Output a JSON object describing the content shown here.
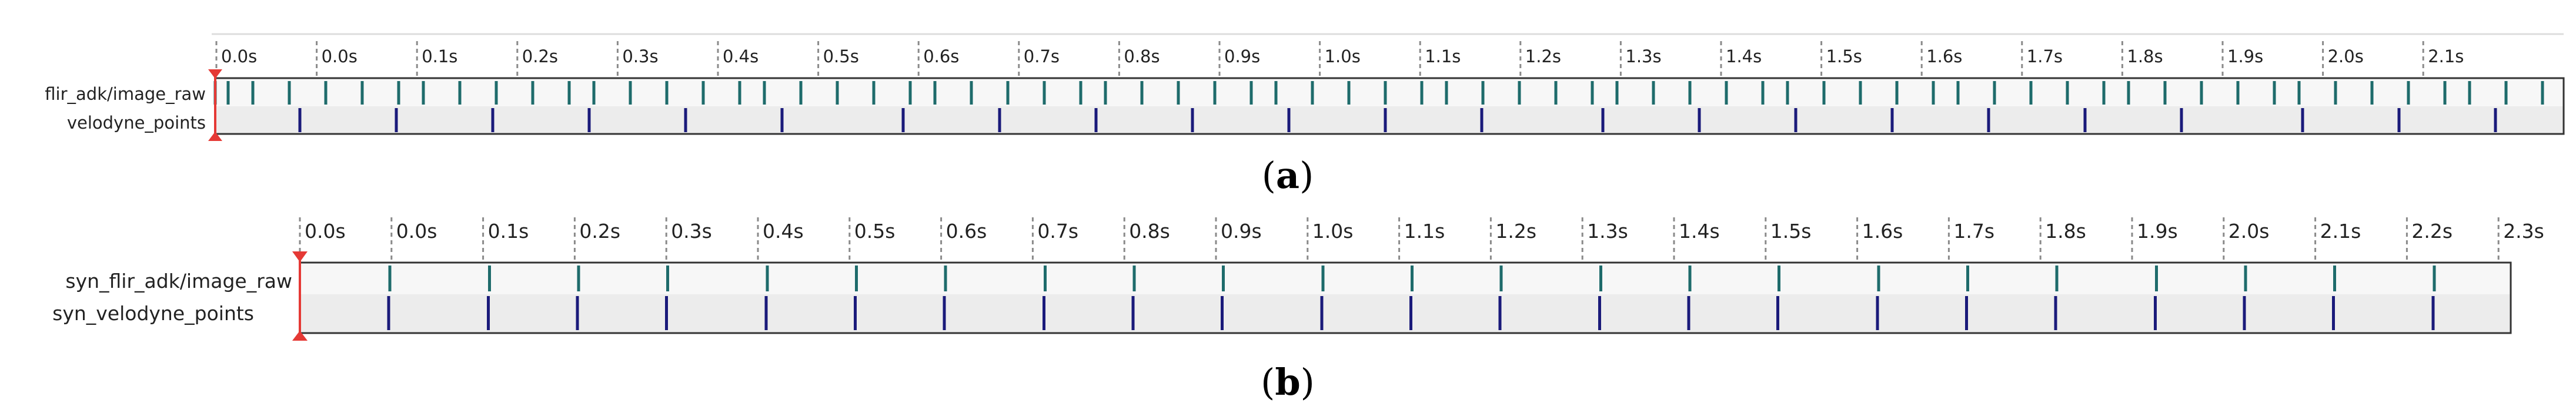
{
  "colors": {
    "grid_line": "#8a8a8a",
    "frame": "#333333",
    "row_top": "#f7f7f7",
    "row_bottom": "#ececec",
    "top_divider": "#dddddd",
    "marker_image": "#1e6b6b",
    "marker_velodyne": "#1a1a7a",
    "playhead": "#e53935"
  },
  "panel_a": {
    "caption_open": "(",
    "caption_letter": "a",
    "caption_close": ")",
    "tick_labels": [
      "0.0s",
      "0.0s",
      "0.1s",
      "0.2s",
      "0.3s",
      "0.4s",
      "0.5s",
      "0.6s",
      "0.7s",
      "0.8s",
      "0.9s",
      "1.0s",
      "1.1s",
      "1.2s",
      "1.3s",
      "1.4s",
      "1.5s",
      "1.6s",
      "1.7s",
      "1.8s",
      "1.9s",
      "2.0s",
      "2.1s"
    ],
    "topics": [
      "flir_adk/image_raw",
      "velodyne_points"
    ]
  },
  "panel_b": {
    "caption_open": "(",
    "caption_letter": "b",
    "caption_close": ")",
    "tick_labels": [
      "0.0s",
      "0.0s",
      "0.1s",
      "0.2s",
      "0.3s",
      "0.4s",
      "0.5s",
      "0.6s",
      "0.7s",
      "0.8s",
      "0.9s",
      "1.0s",
      "1.1s",
      "1.2s",
      "1.3s",
      "1.4s",
      "1.5s",
      "1.6s",
      "1.7s",
      "1.8s",
      "1.9s",
      "2.0s",
      "2.1s",
      "2.2s",
      "2.3s"
    ],
    "topics": [
      "syn_flir_adk/image_raw",
      "syn_velodyne_points"
    ]
  }
}
